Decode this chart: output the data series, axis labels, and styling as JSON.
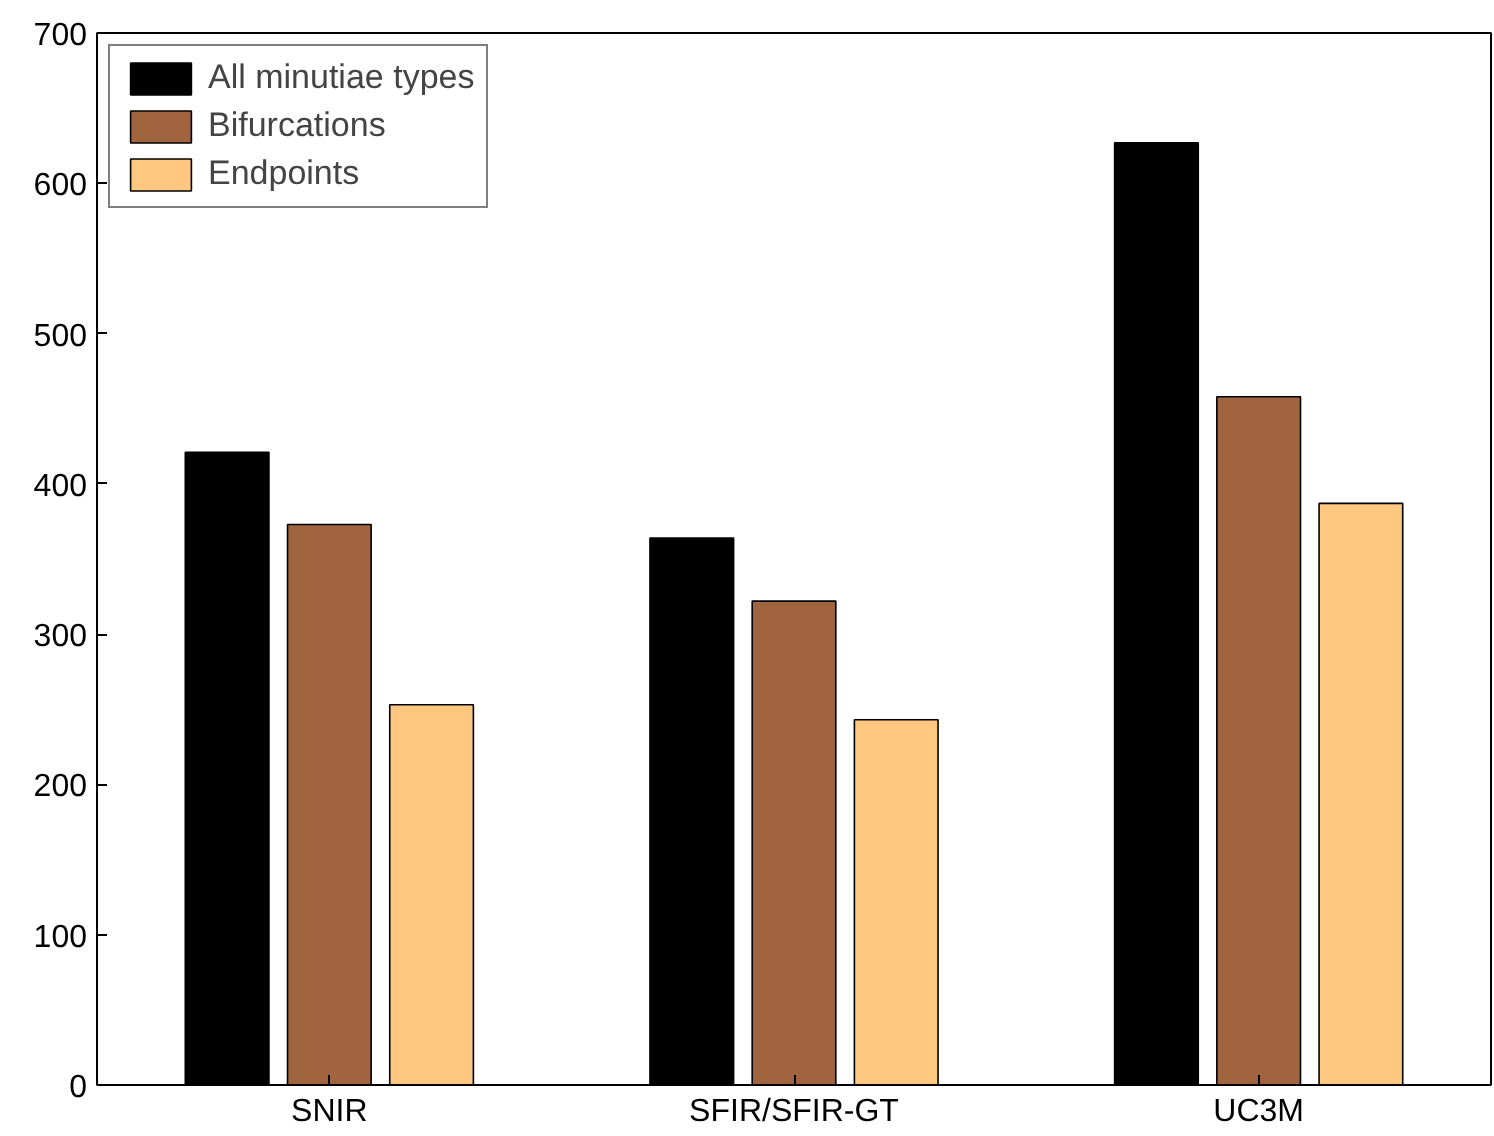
{
  "chart_data": {
    "type": "bar",
    "categories": [
      "SNIR",
      "SFIR/SFIR-GT",
      "UC3M"
    ],
    "series": [
      {
        "name": "All minutiae types",
        "color": "#000000",
        "values": [
          421,
          364,
          627
        ]
      },
      {
        "name": "Bifurcations",
        "color": "#a0653f",
        "values": [
          373,
          322,
          458
        ]
      },
      {
        "name": "Endpoints",
        "color": "#ffc77f",
        "values": [
          253,
          243,
          387
        ]
      }
    ],
    "ylim": [
      0,
      700
    ],
    "yticks": [
      0,
      100,
      200,
      300,
      400,
      500,
      600,
      700
    ],
    "grid": false,
    "legend": "top left"
  }
}
